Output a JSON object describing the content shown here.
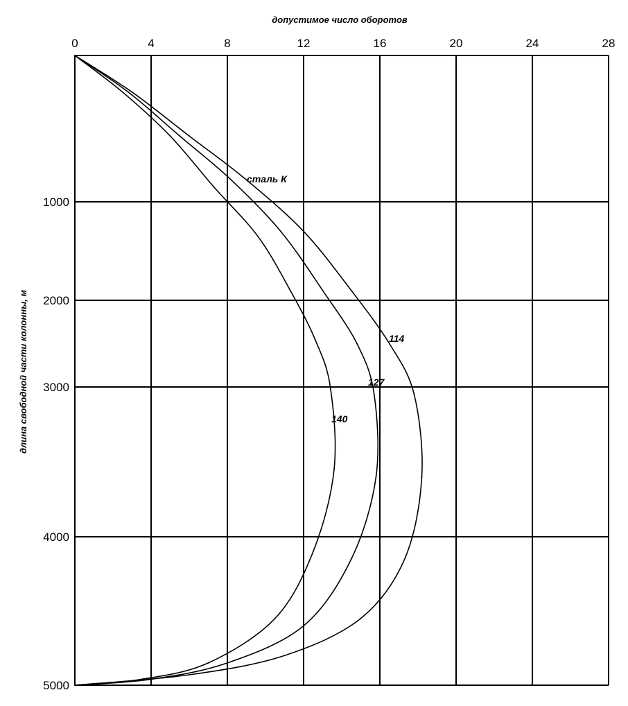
{
  "chart_data": {
    "type": "line",
    "title": "",
    "xlabel": "допустимое число оборотов",
    "ylabel": "длина свободной части колонны, м",
    "x_ticks": [
      "0",
      "4",
      "8",
      "12",
      "16",
      "20",
      "24",
      "28"
    ],
    "y_ticks": [
      "1000",
      "2000",
      "3000",
      "4000",
      "5000"
    ],
    "xlim": [
      0,
      28
    ],
    "ylim": [
      0,
      5000
    ],
    "y_inverted": true,
    "x_axis_position": "top",
    "grid": true,
    "annotation": "сталь К",
    "series": [
      {
        "name": "114",
        "points": [
          [
            0,
            0
          ],
          [
            3,
            250
          ],
          [
            6,
            550
          ],
          [
            9,
            850
          ],
          [
            12,
            1300
          ],
          [
            14.5,
            1900
          ],
          [
            16.5,
            2500
          ],
          [
            17.8,
            3050
          ],
          [
            18.2,
            3600
          ],
          [
            17.3,
            4150
          ],
          [
            15,
            4550
          ],
          [
            11,
            4800
          ],
          [
            6,
            4930
          ],
          [
            0,
            5000
          ]
        ]
      },
      {
        "name": "127",
        "points": [
          [
            0,
            0
          ],
          [
            2.8,
            250
          ],
          [
            5.5,
            550
          ],
          [
            8.2,
            850
          ],
          [
            10.8,
            1300
          ],
          [
            13,
            1900
          ],
          [
            14.8,
            2500
          ],
          [
            15.7,
            3050
          ],
          [
            15.8,
            3600
          ],
          [
            14.5,
            4150
          ],
          [
            12,
            4600
          ],
          [
            8,
            4850
          ],
          [
            4,
            4960
          ],
          [
            0,
            5000
          ]
        ]
      },
      {
        "name": "140",
        "points": [
          [
            0,
            0
          ],
          [
            2.5,
            250
          ],
          [
            5,
            550
          ],
          [
            7.3,
            900
          ],
          [
            9.6,
            1350
          ],
          [
            11.3,
            1900
          ],
          [
            12.6,
            2450
          ],
          [
            13.4,
            3000
          ],
          [
            13.6,
            3550
          ],
          [
            12.5,
            4100
          ],
          [
            10.5,
            4550
          ],
          [
            7,
            4850
          ],
          [
            3.5,
            4960
          ],
          [
            0,
            5000
          ]
        ]
      }
    ]
  }
}
